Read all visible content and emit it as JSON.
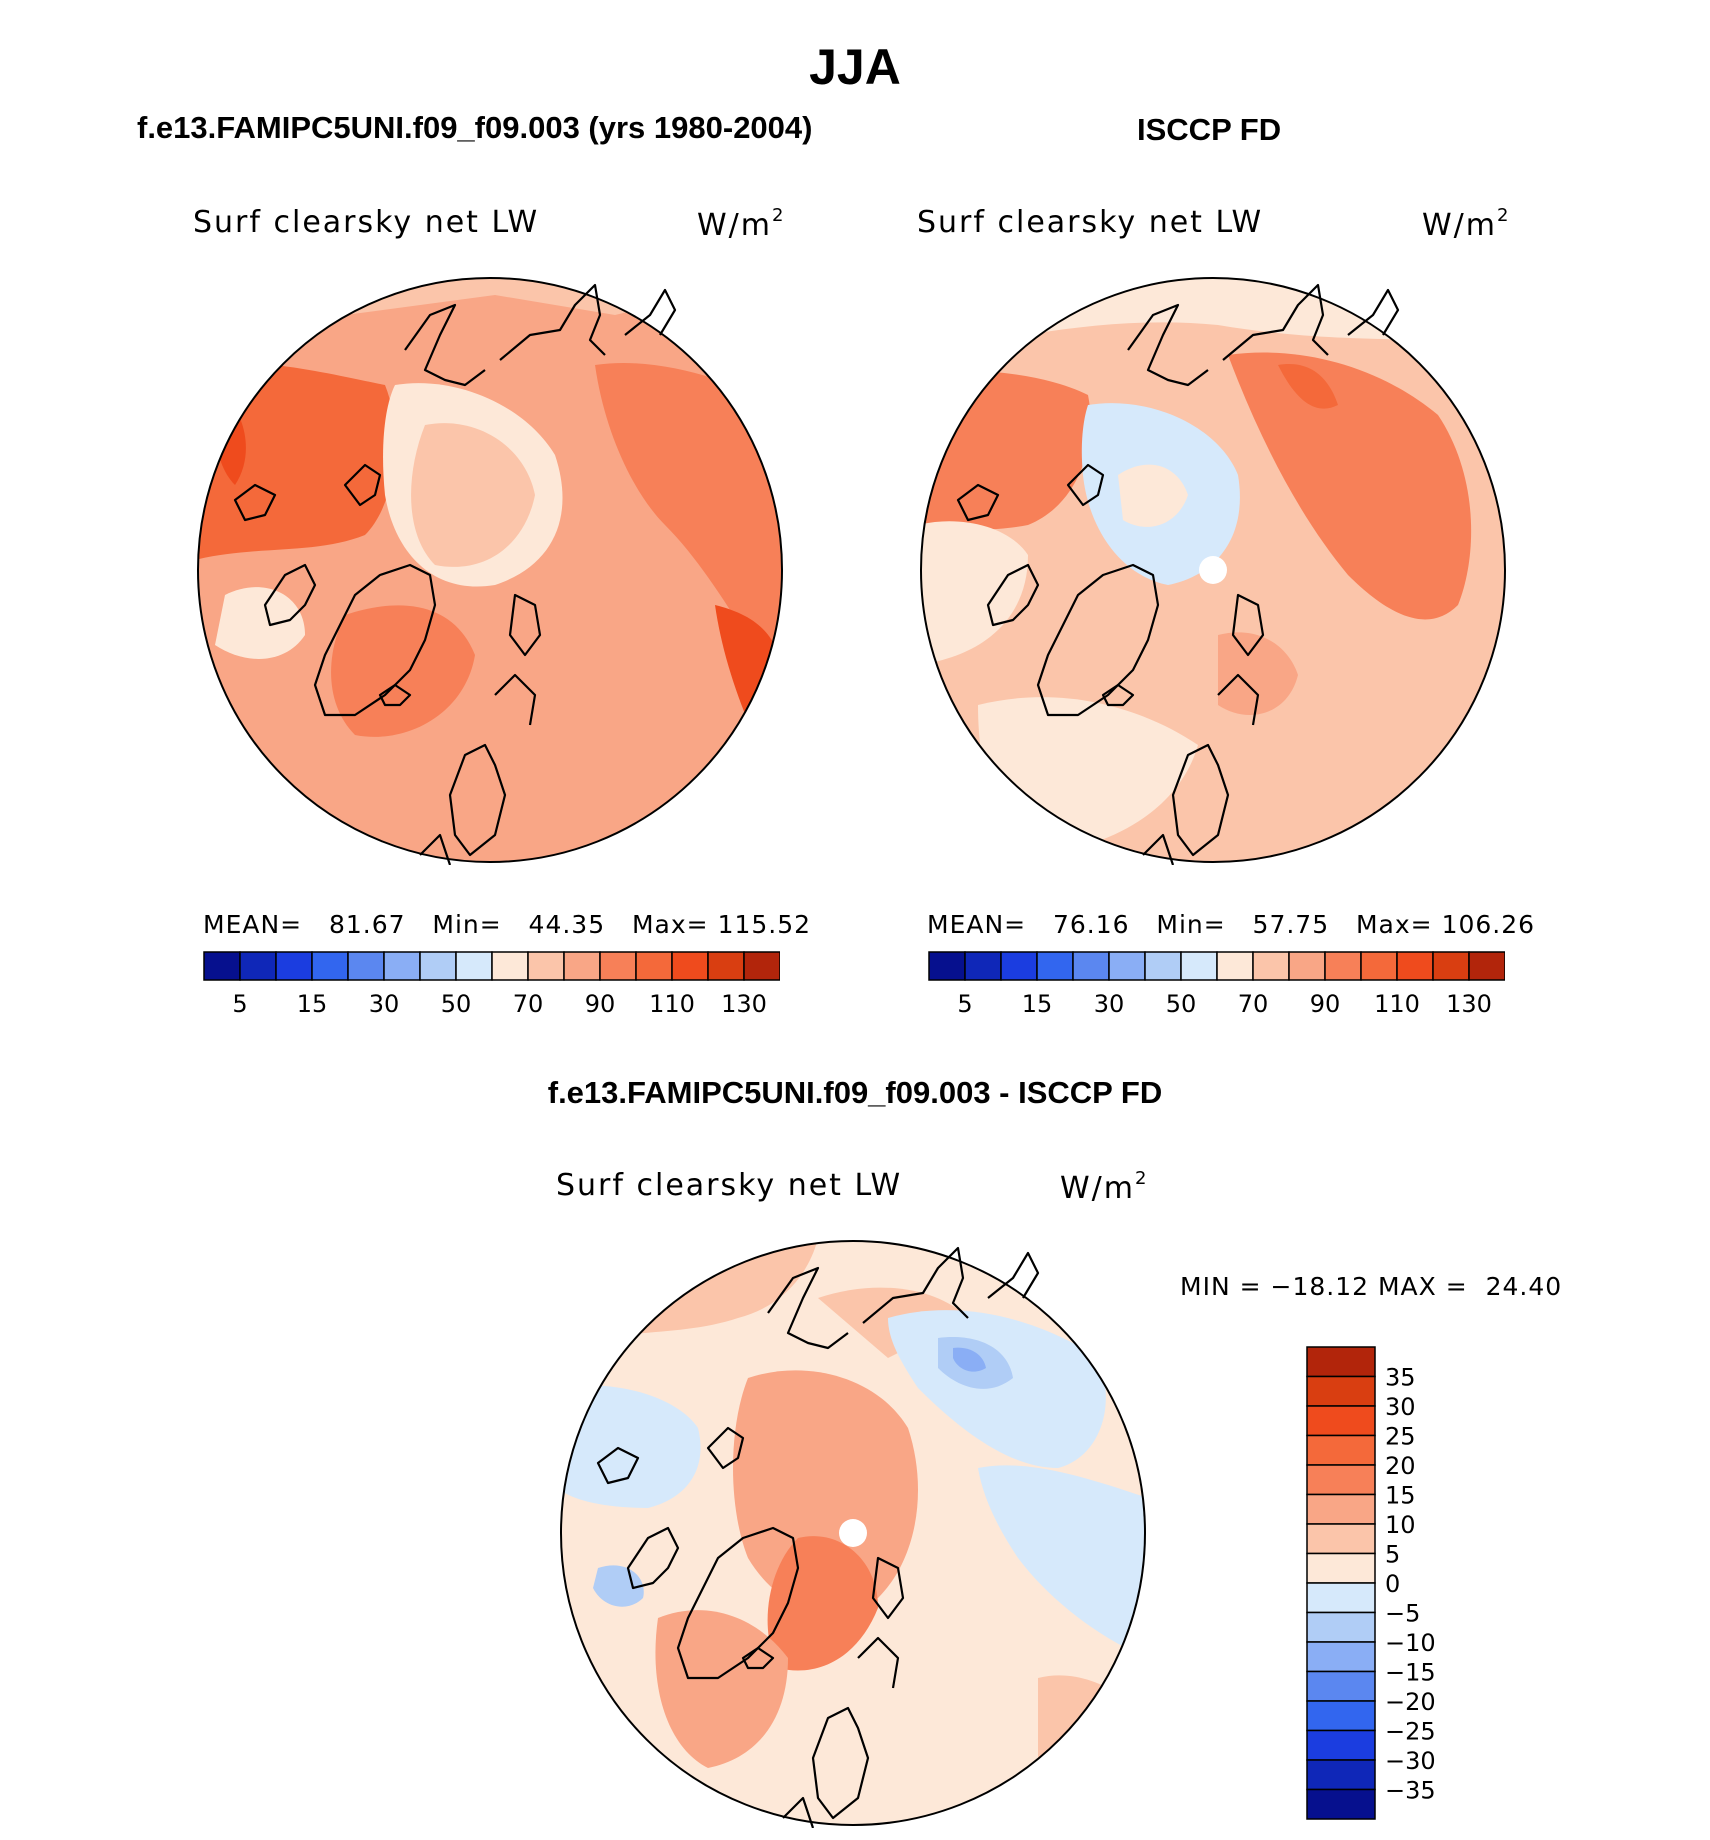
{
  "page_title": "JJA",
  "colors": {
    "pos_fill": [
      "#fde8d8",
      "#fbc5aa",
      "#f9a686",
      "#f78058",
      "#f4693a",
      "#ef4b1d",
      "#d93e11",
      "#b2250b",
      "#7e0606"
    ],
    "neg_fill": [
      "#d6e9fb",
      "#b0cdf6",
      "#8aaef5",
      "#5b87f0",
      "#3266ef",
      "#1b3de0",
      "#0f27b8",
      "#06108e",
      "#030a6f"
    ],
    "outline": "#000000"
  },
  "chart_data": [
    {
      "type": "heatmap",
      "projection": "north-polar-stereographic",
      "title": "f.e13.FAMIPC5UNI.f09_f09.003 (yrs 1980-2004)",
      "variable": "Surf clearsky net LW",
      "units_base": "W/m",
      "units_exp": "2",
      "stats": {
        "mean_label": "MEAN=",
        "mean": "81.67",
        "min_label": "Min=",
        "min": "44.35",
        "max_label": "Max=",
        "max": "115.52"
      },
      "colorbar": {
        "orientation": "horizontal",
        "levels": [
          5,
          10,
          15,
          20,
          30,
          40,
          50,
          60,
          70,
          80,
          90,
          100,
          110,
          120,
          130
        ],
        "tick_labels": [
          "5",
          "15",
          "30",
          "50",
          "70",
          "90",
          "110",
          "130"
        ],
        "n_colors": 16
      }
    },
    {
      "type": "heatmap",
      "projection": "north-polar-stereographic",
      "title": "ISCCP FD",
      "variable": "Surf clearsky net LW",
      "units_base": "W/m",
      "units_exp": "2",
      "stats": {
        "mean_label": "MEAN=",
        "mean": "76.16",
        "min_label": "Min=",
        "min": "57.75",
        "max_label": "Max=",
        "max": "106.26"
      },
      "colorbar": {
        "orientation": "horizontal",
        "levels": [
          5,
          10,
          15,
          20,
          30,
          40,
          50,
          60,
          70,
          80,
          90,
          100,
          110,
          120,
          130
        ],
        "tick_labels": [
          "5",
          "15",
          "30",
          "50",
          "70",
          "90",
          "110",
          "130"
        ],
        "n_colors": 16
      }
    },
    {
      "type": "heatmap",
      "projection": "north-polar-stereographic",
      "title": "f.e13.FAMIPC5UNI.f09_f09.003 - ISCCP FD",
      "variable": "Surf clearsky net LW",
      "units_base": "W/m",
      "units_exp": "2",
      "stats": {
        "min_label": "MIN =",
        "min": "−18.12",
        "max_label": "MAX =",
        "max": "24.40"
      },
      "colorbar": {
        "orientation": "vertical",
        "levels": [
          35,
          30,
          25,
          20,
          15,
          10,
          5,
          0,
          -5,
          -10,
          -15,
          -20,
          -25,
          -30,
          -35
        ],
        "tick_labels": [
          "35",
          "30",
          "25",
          "20",
          "15",
          "10",
          "5",
          "0",
          "−5",
          "−10",
          "−15",
          "−20",
          "−25",
          "−30",
          "−35"
        ],
        "n_colors": 16
      }
    }
  ]
}
